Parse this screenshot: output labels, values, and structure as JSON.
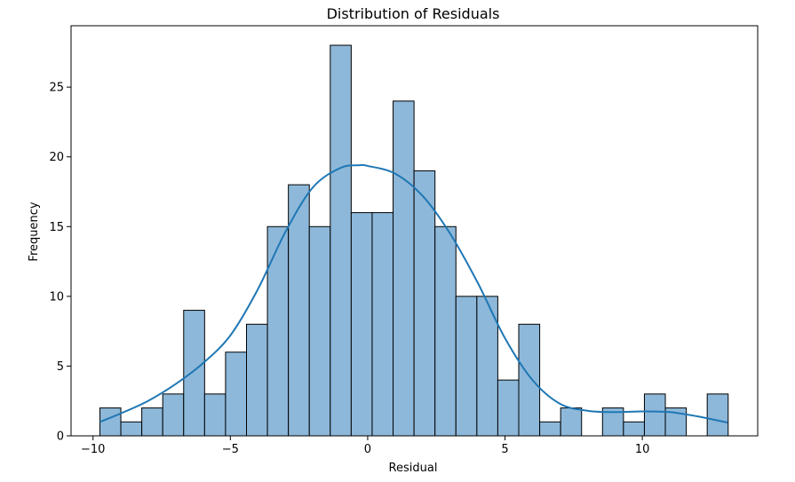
{
  "chart_data": {
    "type": "bar",
    "title": "Distribution of Residuals",
    "xlabel": "Residual",
    "ylabel": "Frequency",
    "xlim": [
      -10.8,
      14.2
    ],
    "ylim": [
      0,
      29.4
    ],
    "xticks": [
      -10,
      -5,
      0,
      5,
      10
    ],
    "xtick_labels": [
      "−10",
      "−5",
      "0",
      "5",
      "10"
    ],
    "yticks": [
      0,
      5,
      10,
      15,
      20,
      25
    ],
    "yticks_labels": [
      "0",
      "5",
      "10",
      "15",
      "20",
      "25"
    ],
    "bin_start": -9.75,
    "bin_width": 0.7625,
    "counts": [
      2,
      1,
      2,
      3,
      9,
      3,
      6,
      8,
      15,
      18,
      15,
      28,
      16,
      16,
      24,
      19,
      15,
      10,
      10,
      4,
      8,
      1,
      2,
      0,
      2,
      1,
      3,
      2,
      0,
      3
    ],
    "bar_color": "#8db8da",
    "bar_edge_color": "#000000",
    "kde_color": "#1f77b4",
    "kde": {
      "x": [
        -9.75,
        -9,
        -8,
        -7,
        -6,
        -5,
        -4,
        -3,
        -2,
        -1,
        -0.3,
        0,
        1,
        2,
        3,
        4,
        5,
        6,
        7,
        8,
        9,
        10,
        11,
        12,
        13.1
      ],
      "y": [
        1.0,
        1.6,
        2.5,
        3.7,
        5.2,
        7.2,
        10.5,
        14.6,
        17.8,
        19.2,
        19.4,
        19.35,
        18.8,
        17.2,
        14.5,
        11.0,
        7.0,
        4.0,
        2.3,
        1.8,
        1.7,
        1.75,
        1.7,
        1.4,
        0.95
      ]
    },
    "grid": false,
    "legend": "none"
  }
}
